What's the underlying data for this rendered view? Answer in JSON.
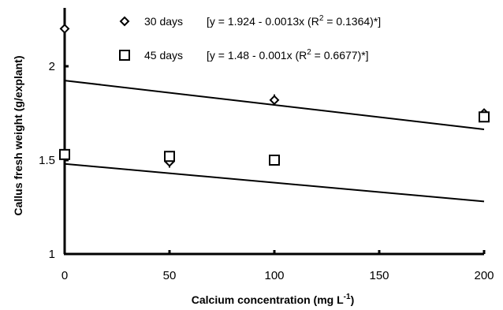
{
  "chart_data": {
    "type": "scatter",
    "xlabel": "Calcium concentration (mg L",
    "xlabel_sup": "-1",
    "xlabel_end": ")",
    "ylabel": "Callus fresh weight (g/explant)",
    "xlim": [
      0,
      200
    ],
    "ylim": [
      1,
      2.3
    ],
    "xticks": [
      0,
      50,
      100,
      150,
      200
    ],
    "yticks": [
      1,
      1.5,
      2
    ],
    "xtick_labels": [
      "0",
      "50",
      "100",
      "150",
      "200"
    ],
    "ytick_labels": [
      "1",
      "1.5",
      "2"
    ],
    "grid": false,
    "legend_position": "top",
    "series": [
      {
        "name": "30 days",
        "marker": "diamond",
        "x": [
          0,
          50,
          100,
          200
        ],
        "y": [
          2.2,
          1.49,
          1.82,
          1.75
        ],
        "error": [
          0,
          0.03,
          0.03,
          0
        ],
        "fit": {
          "intercept": 1.924,
          "slope": -0.0013
        },
        "equation_pre": "[y = 1.924 - 0.0013x (R",
        "equation_sup": "2",
        "equation_post": " = 0.1364)*]"
      },
      {
        "name": "45 days",
        "marker": "square",
        "x": [
          0,
          50,
          100,
          200
        ],
        "y": [
          1.53,
          1.52,
          1.5,
          1.73
        ],
        "error": [
          0,
          0,
          0,
          0
        ],
        "fit": {
          "intercept": 1.48,
          "slope": -0.001
        },
        "equation_pre": "[y = 1.48 - 0.001x (R",
        "equation_sup": "2",
        "equation_post": " = 0.6677)*]"
      }
    ]
  }
}
